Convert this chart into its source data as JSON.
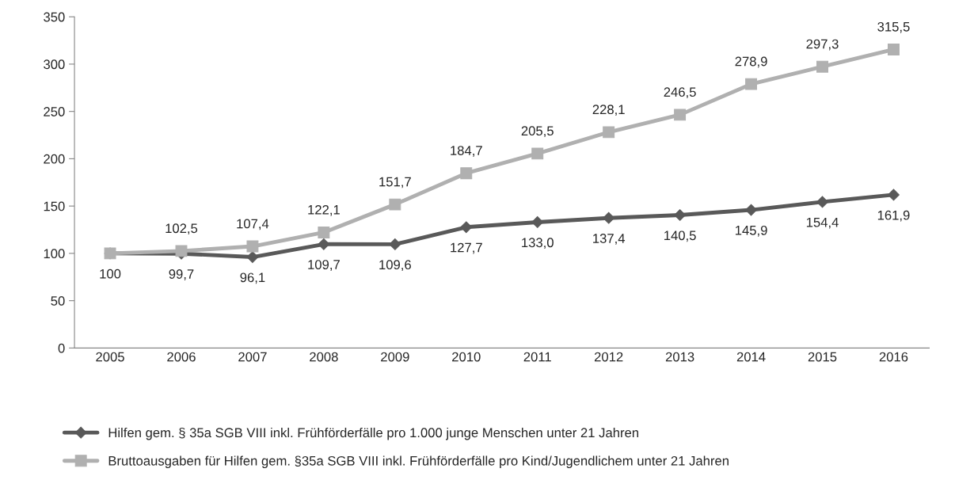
{
  "chart_data": {
    "type": "line",
    "categories": [
      "2005",
      "2006",
      "2007",
      "2008",
      "2009",
      "2010",
      "2011",
      "2012",
      "2013",
      "2014",
      "2015",
      "2016"
    ],
    "series": [
      {
        "name": "Hilfen gem. § 35a SGB VIII inkl. Frühförderfälle pro 1.000 junge Menschen unter 21 Jahren",
        "color": "#595959",
        "marker": "diamond",
        "values": [
          100,
          99.7,
          96.1,
          109.7,
          109.6,
          127.7,
          133.0,
          137.4,
          140.5,
          145.9,
          154.4,
          161.9
        ],
        "value_labels": [
          "100",
          "99,7",
          "96,1",
          "109,7",
          "109,6",
          "127,7",
          "133,0",
          "137,4",
          "140,5",
          "145,9",
          "154,4",
          "161,9"
        ]
      },
      {
        "name": "Bruttoausgaben für Hilfen gem. §35a SGB VIII inkl. Frühförderfälle pro Kind/Jugendlichem unter 21 Jahren",
        "color": "#b0b0b0",
        "marker": "square",
        "values": [
          100,
          102.5,
          107.4,
          122.1,
          151.7,
          184.7,
          205.5,
          228.1,
          246.5,
          278.9,
          297.3,
          315.5
        ],
        "value_labels": [
          null,
          "102,5",
          "107,4",
          "122,1",
          "151,7",
          "184,7",
          "205,5",
          "228,1",
          "246,5",
          "278,9",
          "297,3",
          "315,5"
        ]
      }
    ],
    "ylim": [
      0,
      350
    ],
    "yticks": [
      0,
      50,
      100,
      150,
      200,
      250,
      300,
      350
    ],
    "grid": false,
    "legend": "bottom",
    "line_style": "solid"
  }
}
